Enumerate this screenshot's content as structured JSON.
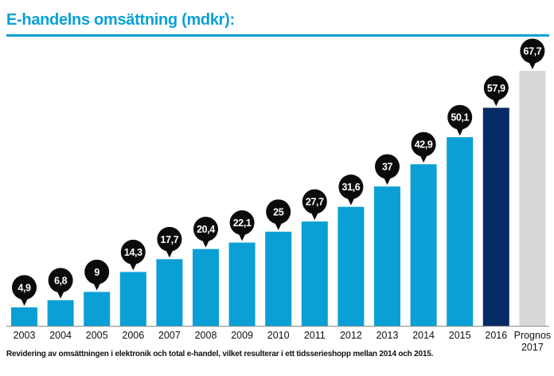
{
  "title": "E-handelns omsättning (mdkr):",
  "footnote": "Revidering av omsättningen i elektronik och total e-handel, vilket resulterar i ett tidsserieshopp mellan 2014 och 2015.",
  "colors": {
    "accent": "#0aa0d6",
    "bar_default": "#0aa0d6",
    "bar_highlight": "#062a63",
    "bar_forecast": "#d7d8d9",
    "bubble": "#0b0b0b",
    "bubble_text": "#ffffff"
  },
  "chart_data": {
    "type": "bar",
    "categories": [
      "2003",
      "2004",
      "2005",
      "2006",
      "2007",
      "2008",
      "2009",
      "2010",
      "2011",
      "2012",
      "2013",
      "2014",
      "2015",
      "2016",
      "Prognos 2017"
    ],
    "values": [
      4.9,
      6.8,
      9,
      14.3,
      17.7,
      20.4,
      22.1,
      25,
      27.7,
      31.6,
      37,
      42.9,
      50.1,
      57.9,
      67.7
    ],
    "value_labels": [
      "4,9",
      "6,8",
      "9",
      "14,3",
      "17,7",
      "20,4",
      "22,1",
      "25",
      "27,7",
      "31,6",
      "37",
      "42,9",
      "50,1",
      "57,9",
      "67,7"
    ],
    "bar_styles": [
      "default",
      "default",
      "default",
      "default",
      "default",
      "default",
      "default",
      "default",
      "default",
      "default",
      "default",
      "default",
      "default",
      "highlight",
      "forecast"
    ],
    "title": "E-handelns omsättning (mdkr):",
    "xlabel": "",
    "ylabel": "",
    "grid": false,
    "legend": "none"
  }
}
